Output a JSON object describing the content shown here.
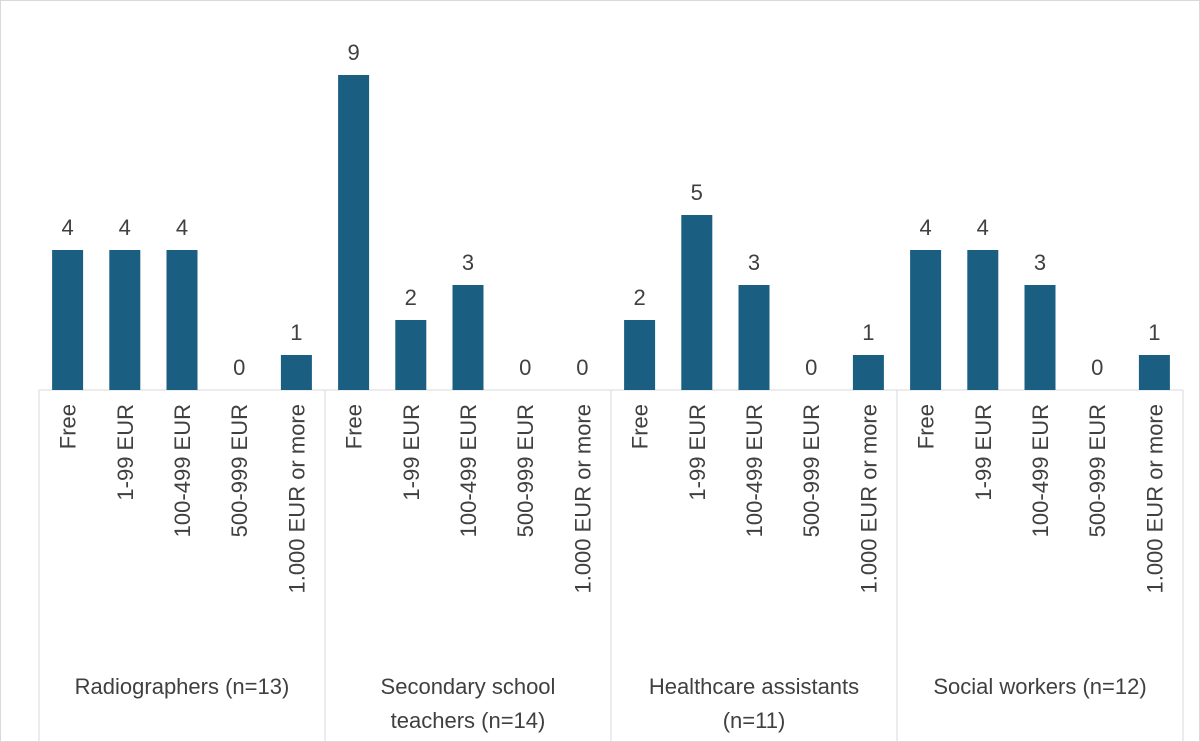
{
  "chart_data": {
    "type": "bar",
    "title": "",
    "xlabel": "",
    "ylabel": "",
    "ylim": [
      0,
      10
    ],
    "grid": false,
    "legend": "none",
    "bar_color": "#1a5f82",
    "categories": [
      "Free",
      "1-99 EUR",
      "100-499 EUR",
      "500-999 EUR",
      "1.000 EUR or more"
    ],
    "groups": [
      {
        "label_lines": [
          "Radiographers (n=13)"
        ],
        "values": [
          4,
          4,
          4,
          0,
          1
        ]
      },
      {
        "label_lines": [
          "Secondary school",
          "teachers (n=14)"
        ],
        "values": [
          9,
          2,
          3,
          0,
          0
        ]
      },
      {
        "label_lines": [
          "Healthcare assistants",
          "(n=11)"
        ],
        "values": [
          2,
          5,
          3,
          0,
          1
        ]
      },
      {
        "label_lines": [
          "Social workers (n=12)"
        ],
        "values": [
          4,
          4,
          3,
          0,
          1
        ]
      }
    ]
  }
}
